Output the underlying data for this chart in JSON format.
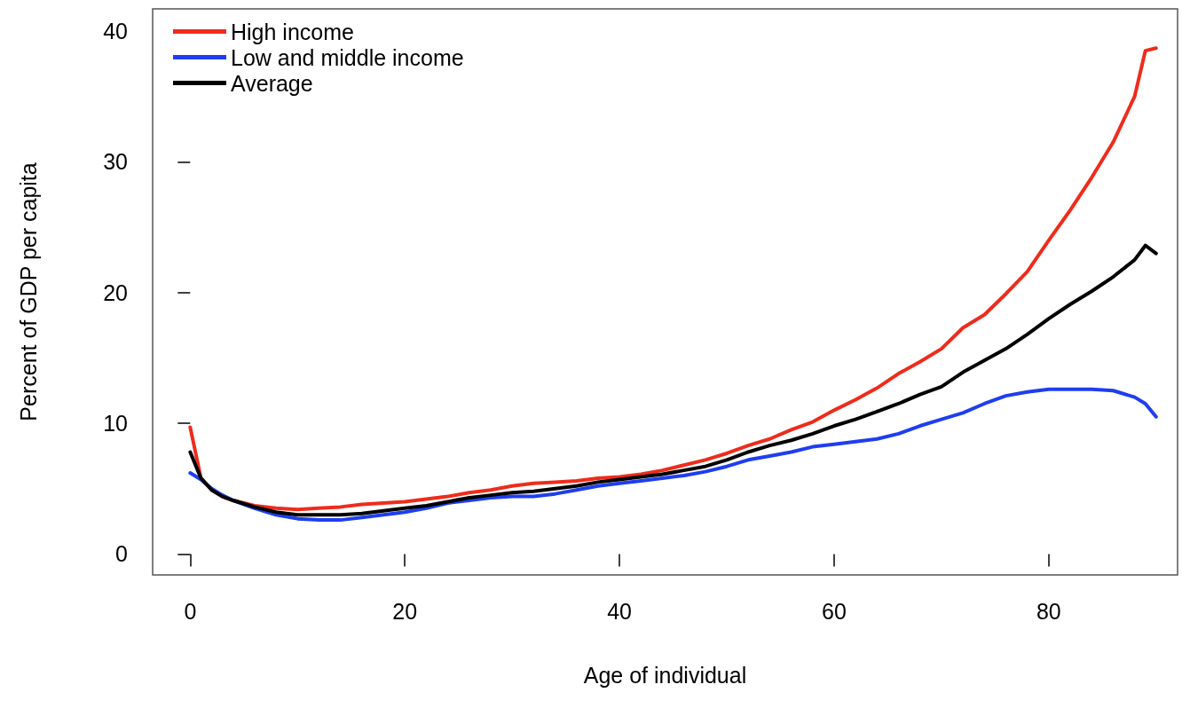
{
  "chart_data": {
    "type": "line",
    "xlabel": "Age of individual",
    "ylabel": "Percent of GDP per capita",
    "x": [
      0,
      1,
      2,
      3,
      4,
      6,
      8,
      10,
      12,
      14,
      16,
      18,
      20,
      22,
      24,
      26,
      28,
      30,
      32,
      34,
      36,
      38,
      40,
      42,
      44,
      46,
      48,
      50,
      52,
      54,
      56,
      58,
      60,
      62,
      64,
      66,
      68,
      70,
      72,
      74,
      76,
      78,
      80,
      82,
      84,
      86,
      88,
      89,
      90
    ],
    "series": [
      {
        "name": "High income",
        "color": "#ee2c1c",
        "values": [
          9.7,
          5.8,
          4.9,
          4.4,
          4.1,
          3.7,
          3.5,
          3.4,
          3.5,
          3.6,
          3.8,
          3.9,
          4.0,
          4.2,
          4.4,
          4.7,
          4.9,
          5.2,
          5.4,
          5.5,
          5.6,
          5.8,
          5.9,
          6.1,
          6.4,
          6.8,
          7.2,
          7.7,
          8.3,
          8.8,
          9.5,
          10.1,
          11.0,
          11.8,
          12.7,
          13.8,
          14.7,
          15.7,
          17.3,
          18.3,
          19.9,
          21.6,
          24.0,
          26.3,
          28.8,
          31.5,
          35.0,
          38.5,
          38.7
        ]
      },
      {
        "name": "Low and middle income",
        "color": "#1f3ef0",
        "values": [
          6.2,
          5.7,
          5.0,
          4.5,
          4.1,
          3.5,
          3.0,
          2.7,
          2.6,
          2.6,
          2.8,
          3.0,
          3.2,
          3.5,
          3.9,
          4.1,
          4.3,
          4.4,
          4.4,
          4.6,
          4.9,
          5.2,
          5.4,
          5.6,
          5.8,
          6.0,
          6.3,
          6.7,
          7.2,
          7.5,
          7.8,
          8.2,
          8.4,
          8.6,
          8.8,
          9.2,
          9.8,
          10.3,
          10.8,
          11.5,
          12.1,
          12.4,
          12.6,
          12.6,
          12.6,
          12.5,
          12.0,
          11.5,
          10.5
        ]
      },
      {
        "name": "Average",
        "color": "#000000",
        "values": [
          7.8,
          5.8,
          4.9,
          4.4,
          4.1,
          3.6,
          3.2,
          3.0,
          3.0,
          3.0,
          3.1,
          3.3,
          3.5,
          3.7,
          4.0,
          4.3,
          4.5,
          4.7,
          4.8,
          5.0,
          5.2,
          5.5,
          5.7,
          5.9,
          6.1,
          6.4,
          6.7,
          7.2,
          7.8,
          8.3,
          8.7,
          9.2,
          9.8,
          10.3,
          10.9,
          11.5,
          12.2,
          12.8,
          13.9,
          14.8,
          15.7,
          16.8,
          18.0,
          19.1,
          20.1,
          21.2,
          22.5,
          23.6,
          23.0
        ]
      }
    ],
    "xlim": [
      -3.5,
      92
    ],
    "ylim": [
      -1.6,
      41.7
    ],
    "xticks": [
      0,
      20,
      40,
      60,
      80
    ],
    "yticks": [
      0,
      10,
      20,
      30,
      40
    ],
    "grid": false,
    "legend": "top left",
    "marker": "none",
    "line_style": "solid"
  }
}
